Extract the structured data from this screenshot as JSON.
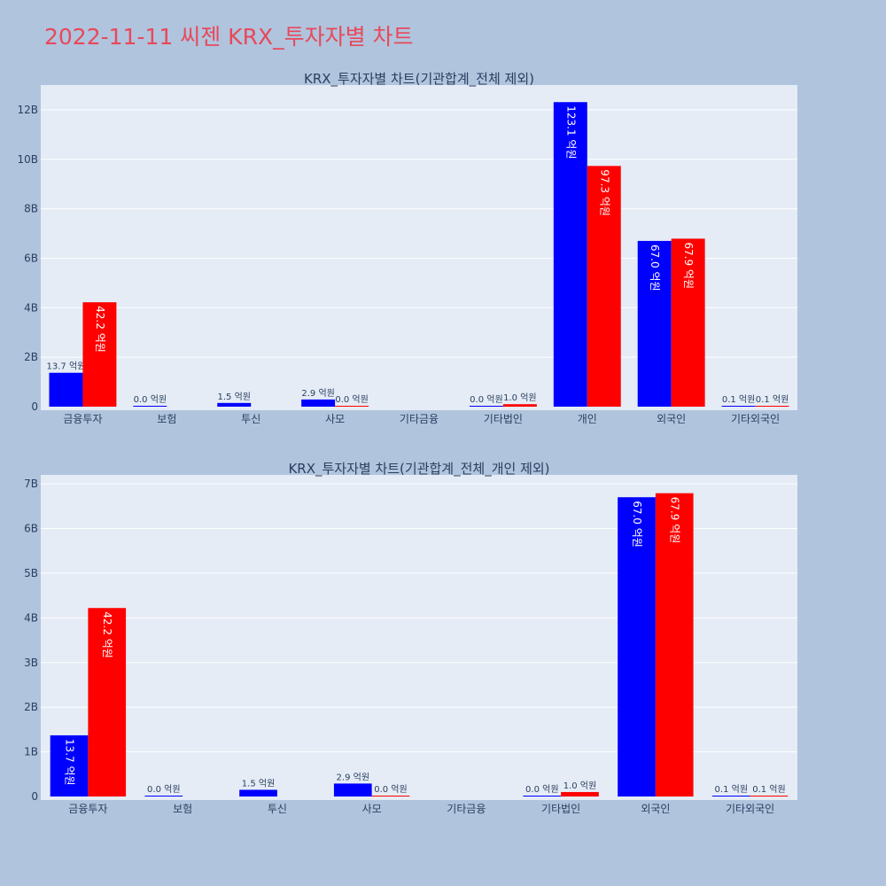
{
  "page_title": "2022-11-11 씨젠 KRX_투자자별 차트",
  "colors": {
    "series_a": "#0000ff",
    "series_b": "#ff0000",
    "plot_bg": "#e5ecf6",
    "page_bg": "#b0c4de",
    "title": "#e8495a"
  },
  "chart_data": [
    {
      "type": "bar",
      "title": "KRX_투자자별 차트(기관합계_전체 제외)",
      "categories": [
        "금융투자",
        "보험",
        "투신",
        "사모",
        "기타금융",
        "기타법인",
        "개인",
        "외국인",
        "기타외국인"
      ],
      "ylim": [
        0,
        13000000000
      ],
      "yticks": [
        0,
        2000000000,
        4000000000,
        6000000000,
        8000000000,
        10000000000,
        12000000000
      ],
      "ytick_labels": [
        "0",
        "2B",
        "4B",
        "6B",
        "8B",
        "10B",
        "12B"
      ],
      "series": [
        {
          "values": [
            1370000000,
            0,
            150000000,
            290000000,
            null,
            0,
            12310000000,
            6700000000,
            10000000
          ],
          "labels": [
            "13.7 억원",
            "0.0 억원",
            "1.5 억원",
            "2.9 억원",
            "",
            "0.0 억원",
            "123.1 억원",
            "67.0 억원",
            "0.1 억원"
          ]
        },
        {
          "values": [
            4220000000,
            null,
            null,
            0,
            null,
            100000000,
            9730000000,
            6790000000,
            10000000
          ],
          "labels": [
            "42.2 억원",
            "",
            "",
            "0.0 억원",
            "",
            "1.0 억원",
            "97.3 억원",
            "67.9 억원",
            "0.1 억원"
          ]
        }
      ],
      "grid": true
    },
    {
      "type": "bar",
      "title": "KRX_투자자별 차트(기관합계_전체_개인 제외)",
      "categories": [
        "금융투자",
        "보험",
        "투신",
        "사모",
        "기타금융",
        "기타법인",
        "외국인",
        "기타외국인"
      ],
      "ylim": [
        0,
        7200000000
      ],
      "yticks": [
        0,
        1000000000,
        2000000000,
        3000000000,
        4000000000,
        5000000000,
        6000000000,
        7000000000
      ],
      "ytick_labels": [
        "0",
        "1B",
        "2B",
        "3B",
        "4B",
        "5B",
        "6B",
        "7B"
      ],
      "series": [
        {
          "values": [
            1370000000,
            0,
            150000000,
            290000000,
            null,
            0,
            6700000000,
            10000000
          ],
          "labels": [
            "13.7 억원",
            "0.0 억원",
            "1.5 억원",
            "2.9 억원",
            "",
            "0.0 억원",
            "67.0 억원",
            "0.1 억원"
          ]
        },
        {
          "values": [
            4220000000,
            null,
            null,
            0,
            null,
            100000000,
            6790000000,
            10000000
          ],
          "labels": [
            "42.2 억원",
            "",
            "",
            "0.0 억원",
            "",
            "1.0 억원",
            "67.9 억원",
            "0.1 억원"
          ]
        }
      ],
      "grid": true
    }
  ]
}
